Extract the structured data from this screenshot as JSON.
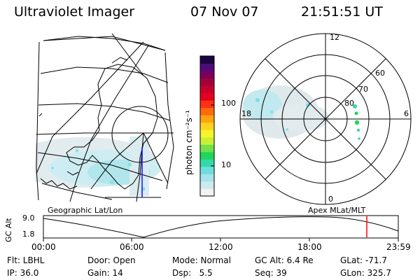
{
  "header": {
    "title": "Ultraviolet Imager",
    "date": "07 Nov 07",
    "time": "21:51:51 UT"
  },
  "maps": {
    "left_label": "Geographic Lat/Lon",
    "right_label": "Apex MLat/MLT"
  },
  "colorbar": {
    "unit_label": "photon cm⁻²s⁻¹",
    "tick_100": "100",
    "tick_10": "10",
    "colors": [
      "#f2f2f2",
      "#cfe9ee",
      "#a7e3ea",
      "#6fdde0",
      "#34d9a6",
      "#22d35c",
      "#74e04a",
      "#c8f035",
      "#f6f52b",
      "#ffd21e",
      "#ffa313",
      "#ff6a0d",
      "#ff2f14",
      "#e6001e",
      "#c6002a",
      "#a3003b",
      "#7a005d",
      "#4e0b7a",
      "#1b063f"
    ]
  },
  "polar": {
    "mlt_12": "12",
    "mlt_18": "18",
    "mlt_6": "6",
    "mlt_0": "0",
    "lat_60": "60",
    "lat_70": "70",
    "lat_80": "80"
  },
  "timeline": {
    "y_label": "GC Alt",
    "y_high": "9.0",
    "y_low": "1.8",
    "ticks": [
      "00:00",
      "06:00",
      "12:00",
      "18:00",
      "23:59"
    ],
    "current_marker_color": "#ff0000"
  },
  "info": {
    "flt": "Flt: LBHL",
    "ip": "IP: 36.0",
    "door": "Door: Open",
    "gain": "Gain: 14",
    "mode": "Mode: Normal",
    "dsp": "Dsp:   5.5",
    "gcalt": "GC Alt: 6.4 Re",
    "seq": "Seq: 39",
    "glat": "GLat: -71.7",
    "glon": "GLon: 325.7"
  }
}
